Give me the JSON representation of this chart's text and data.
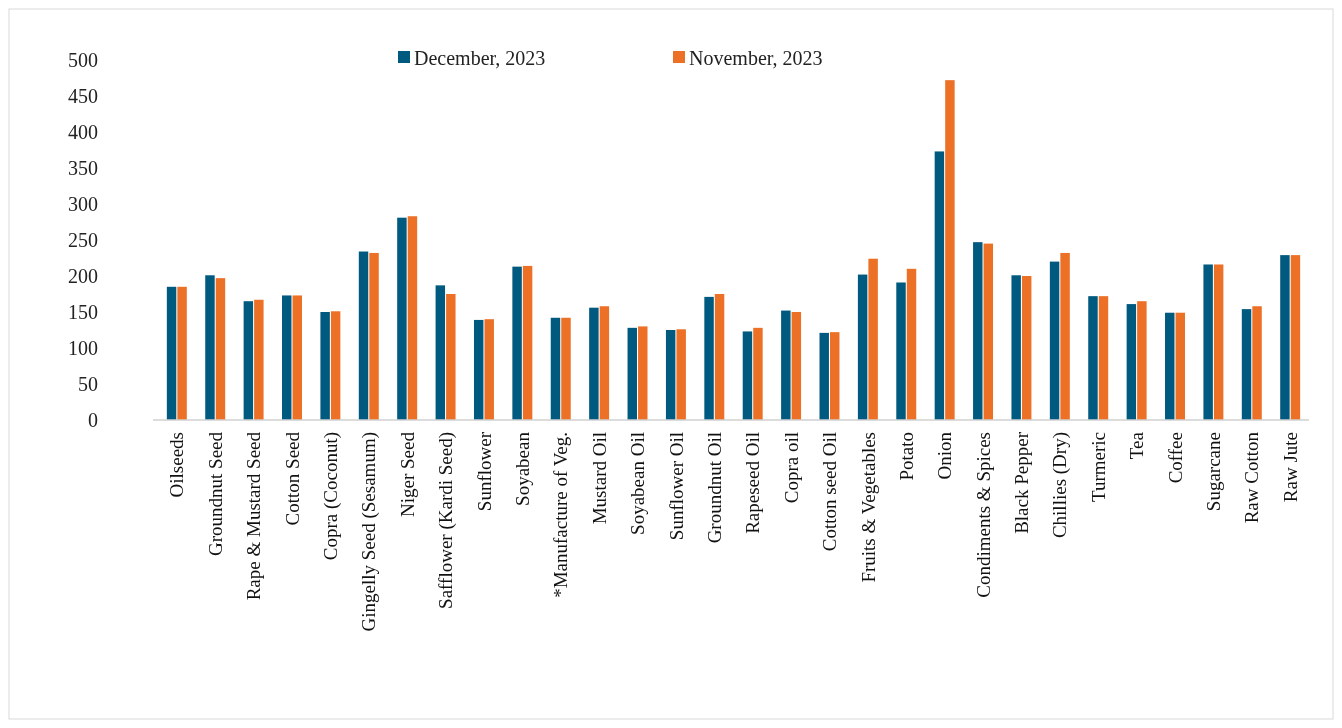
{
  "chart_data": {
    "type": "bar",
    "categories": [
      "Oilseeds",
      "Groundnut Seed",
      "Rape & Mustard Seed",
      "Cotton Seed",
      "Copra (Coconut)",
      "Gingelly Seed (Sesamum)",
      "Niger Seed",
      "Safflower (Kardi Seed)",
      "Sunflower",
      "Soyabean",
      "*Manufacture of Veg.",
      "Mustard Oil",
      "Soyabean Oil",
      "Sunflower Oil",
      "Groundnut Oil",
      "Rapeseed Oil",
      "Copra oil",
      "Cotton seed Oil",
      "Fruits & Vegetables",
      "Potato",
      "Onion",
      "Condiments & Spices",
      "Black Pepper",
      "Chillies (Dry)",
      "Turmeric",
      "Tea",
      "Coffee",
      "Sugarcane",
      "Raw Cotton",
      "Raw Jute"
    ],
    "series": [
      {
        "name": "December, 2023",
        "color": "#005a7f",
        "values": [
          185,
          201,
          165,
          173,
          150,
          234,
          281,
          187,
          139,
          213,
          142,
          156,
          128,
          125,
          171,
          123,
          152,
          121,
          202,
          191,
          373,
          247,
          201,
          220,
          172,
          161,
          149,
          216,
          154,
          229
        ]
      },
      {
        "name": "November, 2023",
        "color": "#ec7026",
        "values": [
          185,
          197,
          167,
          173,
          151,
          232,
          283,
          175,
          140,
          214,
          142,
          158,
          130,
          126,
          175,
          128,
          150,
          122,
          224,
          210,
          472,
          245,
          200,
          232,
          172,
          165,
          149,
          216,
          158,
          229
        ]
      }
    ],
    "ylim": [
      0,
      500
    ],
    "yticks": [
      0,
      50,
      100,
      150,
      200,
      250,
      300,
      350,
      400,
      450,
      500
    ],
    "grid": false,
    "legend": "top"
  }
}
